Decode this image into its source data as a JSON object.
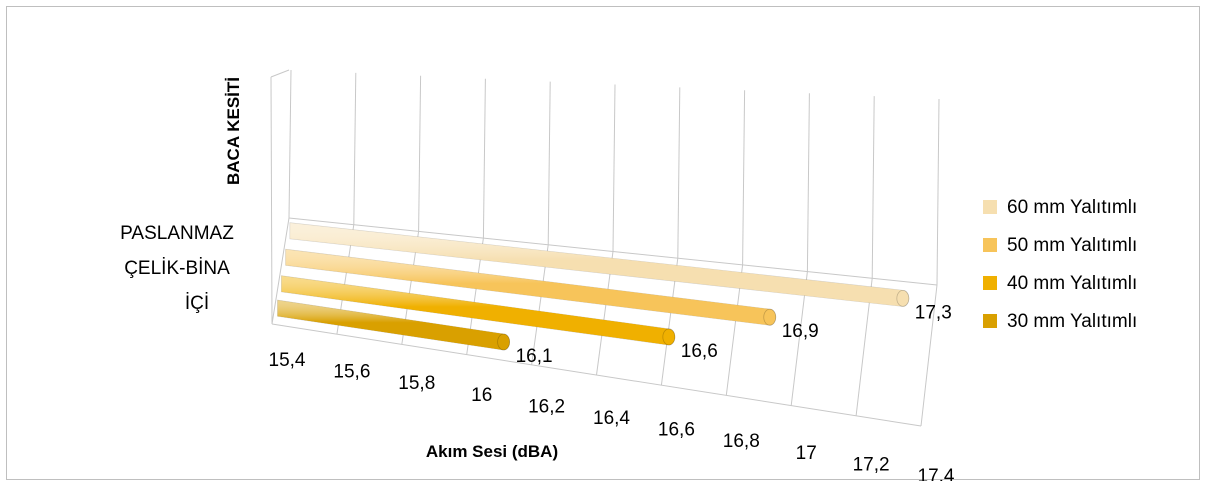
{
  "chart_data": {
    "type": "bar",
    "orientation": "horizontal",
    "style": "3d",
    "categories": [
      "PASLANMAZ ÇELİK-BİNA İÇİ"
    ],
    "category_lines": [
      "PASLANMAZ",
      "ÇELİK-BİNA",
      "İÇİ"
    ],
    "series": [
      {
        "name": "60 mm Yalıtımlı",
        "values": [
          17.3
        ],
        "value_label": "17,3",
        "color": "#f6dfb0"
      },
      {
        "name": "50 mm Yalıtımlı",
        "values": [
          16.9
        ],
        "value_label": "16,9",
        "color": "#f7c45a"
      },
      {
        "name": "40 mm Yalıtımlı",
        "values": [
          16.6
        ],
        "value_label": "16,6",
        "color": "#f0b000"
      },
      {
        "name": "30 mm Yalıtımlı",
        "values": [
          16.1
        ],
        "value_label": "16,1",
        "color": "#d9a000"
      }
    ],
    "xlim": [
      15.4,
      17.4
    ],
    "x_ticks": [
      15.4,
      15.6,
      15.8,
      16,
      16.2,
      16.4,
      16.6,
      16.8,
      17,
      17.2,
      17.4
    ],
    "x_tick_labels": [
      "15,4",
      "15,6",
      "15,8",
      "16",
      "16,2",
      "16,4",
      "16,6",
      "16,8",
      "17",
      "17,2",
      "17,4"
    ],
    "xlabel": "Akım Sesi (dBA)",
    "ylabel": "BACA KESİTİ",
    "legend_position": "right",
    "grid": true
  }
}
